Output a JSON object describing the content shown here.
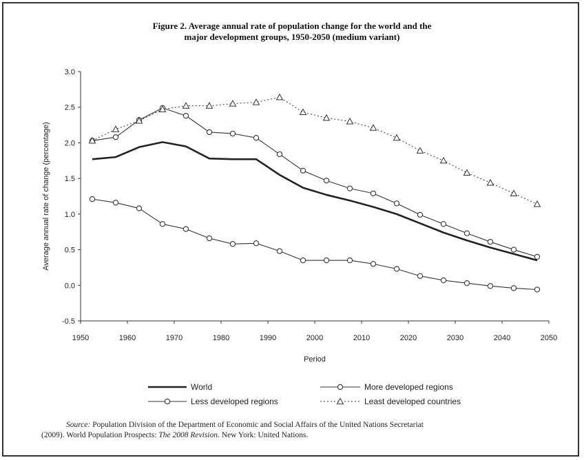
{
  "figure": {
    "title_line1": "Figure 2.  Average annual rate of population change for the world and the",
    "title_line2": "major development groups, 1950-2050 (medium variant)"
  },
  "source": {
    "line1_italic": "Source:",
    "line1_rest": " Population Division of the Department of Economic and Social Affairs of the United Nations Secretariat",
    "line2_a": "(2009). World Population Prospects: ",
    "line2_italic": "The 2008 Revision",
    "line2_b": ". New York: United Nations."
  },
  "chart_data": {
    "type": "line",
    "xlabel": "Period",
    "ylabel": "Average annual rate of change  (percentage)",
    "xlim": [
      1950,
      2050
    ],
    "ylim": [
      -0.5,
      3.0
    ],
    "x_ticks": [
      "1950",
      "1960",
      "1970",
      "1980",
      "1990",
      "2000",
      "2010",
      "2020",
      "2030",
      "2040",
      "2050"
    ],
    "y_ticks": [
      "3.0",
      "2.5",
      "2.0",
      "1.5",
      "1.0",
      "0.5",
      "0.0",
      "-0.5"
    ],
    "grid": false,
    "legend_position": "bottom",
    "x": [
      1952.5,
      1957.5,
      1962.5,
      1967.5,
      1972.5,
      1977.5,
      1982.5,
      1987.5,
      1992.5,
      1997.5,
      2002.5,
      2007.5,
      2012.5,
      2017.5,
      2022.5,
      2027.5,
      2032.5,
      2037.5,
      2042.5,
      2047.5
    ],
    "series": [
      {
        "name": "World",
        "style": "thick-solid",
        "color": "#222222",
        "values": [
          1.77,
          1.8,
          1.94,
          2.01,
          1.95,
          1.78,
          1.77,
          1.77,
          1.55,
          1.37,
          1.27,
          1.19,
          1.1,
          1.0,
          0.87,
          0.74,
          0.63,
          0.53,
          0.44,
          0.35
        ]
      },
      {
        "name": "More developed regions",
        "style": "solid-circle",
        "color": "#333333",
        "values": [
          1.21,
          1.16,
          1.08,
          0.86,
          0.79,
          0.66,
          0.58,
          0.59,
          0.48,
          0.35,
          0.35,
          0.35,
          0.3,
          0.23,
          0.13,
          0.07,
          0.03,
          -0.01,
          -0.04,
          -0.06
        ]
      },
      {
        "name": "Less developed regions",
        "style": "solid-circle",
        "color": "#333333",
        "values": [
          2.03,
          2.08,
          2.32,
          2.49,
          2.38,
          2.15,
          2.13,
          2.07,
          1.84,
          1.61,
          1.47,
          1.36,
          1.29,
          1.15,
          0.99,
          0.86,
          0.73,
          0.61,
          0.5,
          0.4
        ]
      },
      {
        "name": "Least developed countries",
        "style": "dotted-triangle",
        "color": "#333333",
        "values": [
          2.03,
          2.19,
          2.31,
          2.47,
          2.52,
          2.52,
          2.55,
          2.57,
          2.64,
          2.43,
          2.35,
          2.3,
          2.21,
          2.07,
          1.89,
          1.75,
          1.58,
          1.44,
          1.29,
          1.14
        ]
      }
    ]
  }
}
